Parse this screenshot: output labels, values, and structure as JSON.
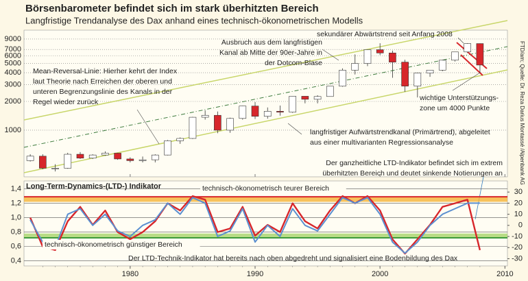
{
  "source": "FTD/am; Quelle: Dr. Reza Darius Montassé /Alpenbank AG",
  "chart_data": [
    {
      "type": "candlestick",
      "title": "Börsenbarometer befindet sich im stark überhitzten Bereich",
      "subtitle": "Langfristige Trendanalyse des Dax anhand eines technisch-ökonometrischen Modells",
      "x": [
        1972,
        1973,
        1974,
        1975,
        1976,
        1977,
        1978,
        1979,
        1980,
        1981,
        1982,
        1983,
        1984,
        1985,
        1986,
        1987,
        1988,
        1989,
        1990,
        1991,
        1992,
        1993,
        1994,
        1995,
        1996,
        1997,
        1998,
        1999,
        2000,
        2001,
        2002,
        2003,
        2004,
        2005,
        2006,
        2007,
        2008
      ],
      "open": [
        480,
        535,
        400,
        400,
        560,
        510,
        550,
        575,
        500,
        480,
        490,
        550,
        775,
        820,
        1366,
        1432,
        1000,
        1328,
        1790,
        1398,
        1578,
        1545,
        2267,
        2107,
        2254,
        2889,
        4250,
        5002,
        6958,
        6434,
        5160,
        2893,
        3965,
        4256,
        5408,
        6597,
        8067
      ],
      "high": [
        560,
        560,
        440,
        580,
        590,
        560,
        600,
        580,
        520,
        530,
        560,
        790,
        840,
        1380,
        1610,
        1570,
        1350,
        1800,
        1970,
        1730,
        1810,
        2270,
        2270,
        2320,
        2900,
        4440,
        6220,
        6990,
        8136,
        6800,
        5470,
        4000,
        4260,
        5460,
        6630,
        8152,
        8100
      ],
      "low": [
        470,
        390,
        370,
        395,
        500,
        500,
        540,
        490,
        460,
        460,
        460,
        545,
        720,
        810,
        1290,
        930,
        940,
        1290,
        1310,
        1320,
        1420,
        1520,
        1910,
        1910,
        2260,
        2850,
        3830,
        4680,
        6110,
        3540,
        2520,
        2203,
        3620,
        4150,
        5240,
        6440,
        4014
      ],
      "close": [
        535,
        400,
        400,
        560,
        510,
        550,
        575,
        500,
        480,
        490,
        550,
        775,
        820,
        1366,
        1432,
        1000,
        1328,
        1790,
        1398,
        1578,
        1545,
        2267,
        2107,
        2254,
        2889,
        4250,
        5002,
        6958,
        6434,
        5160,
        2893,
        3965,
        4256,
        5408,
        6597,
        8067,
        4810
      ],
      "up_color": "#ffffff",
      "down_color": "#d7262b",
      "xlim": [
        1971.5,
        2010.2
      ],
      "xticks": [
        1980,
        1990,
        2000,
        2010
      ],
      "ylim": [
        325,
        11150
      ],
      "log_scale": true,
      "grid": true,
      "yticks": [
        1000,
        2000,
        3000,
        4000,
        5000,
        6000,
        7000,
        9000
      ],
      "annotations": [
        {
          "lines": [
            "sekundärer Abwärtstrend seit Anfang 2008"
          ]
        },
        {
          "lines": [
            "Ausbruch aus dem langfristigen",
            "Kanal ab Mitte der 90er-Jahre in",
            "der Dotcom-Blase"
          ]
        },
        {
          "lines": [
            "Mean-Reversal-Linie: Hierher kehrt der Index",
            "laut Theorie nach Erreichen der oberen und",
            "unteren Begrenzungslinie des Kanals in der",
            "Regel wieder zurück"
          ]
        },
        {
          "lines": [
            "wichtige Unterstützungs-",
            "zone um 4000 Punkte"
          ]
        },
        {
          "lines": [
            "langfristiger Aufwärtstrendkanal (Primärtrend), abgeleitet",
            "aus einer multivarianten Regressionsanalyse"
          ]
        },
        {
          "lines": [
            "Der ganzheitliche LTD-Indikator befindet sich im extrem",
            "überhitzten Bereich und deutet sinkende Notierungen an"
          ],
          "color": "#3a7fc1"
        }
      ]
    },
    {
      "type": "line",
      "title": "Long-Term-Dynamics-(LTD-) Indikator",
      "x": [
        1972,
        1973,
        1974,
        1975,
        1976,
        1977,
        1978,
        1979,
        1980,
        1981,
        1982,
        1983,
        1984,
        1985,
        1986,
        1987,
        1988,
        1989,
        1990,
        1991,
        1992,
        1993,
        1994,
        1995,
        1996,
        1997,
        1998,
        1999,
        2000,
        2001,
        2002,
        2003,
        2004,
        2005,
        2006,
        2007,
        2008
      ],
      "xlim": [
        1971.5,
        2010.2
      ],
      "xticks": [
        1980,
        1990,
        2000,
        2010
      ],
      "series": [
        {
          "color": "#d7262b",
          "values": [
            1.0,
            0.6,
            0.55,
            0.95,
            1.15,
            0.9,
            1.1,
            0.8,
            0.7,
            0.8,
            0.95,
            1.2,
            1.1,
            1.3,
            1.25,
            0.8,
            0.85,
            1.15,
            0.75,
            0.9,
            0.8,
            1.2,
            0.95,
            0.85,
            1.1,
            1.3,
            1.2,
            1.3,
            1.1,
            0.7,
            0.5,
            0.7,
            0.9,
            1.15,
            1.2,
            1.25,
            0.55
          ]
        },
        {
          "color": "#5b8fd0",
          "axis": "y2",
          "values": [
            5,
            -15,
            -20,
            10,
            15,
            0,
            10,
            -5,
            -10,
            0,
            5,
            20,
            10,
            25,
            20,
            -10,
            -5,
            15,
            -15,
            0,
            -10,
            15,
            0,
            -5,
            10,
            25,
            20,
            25,
            10,
            -15,
            -25,
            -15,
            0,
            10,
            15,
            20,
            20
          ]
        }
      ],
      "ylim": [
        0.33,
        1.51
      ],
      "yticks": [
        {
          "value": 0.4,
          "label": "0,4"
        },
        {
          "value": 0.6,
          "label": "0,6"
        },
        {
          "value": 0.8,
          "label": "0,8"
        },
        {
          "value": 1.0,
          "label": "1,0"
        },
        {
          "value": 1.2,
          "label": "1,2"
        },
        {
          "value": 1.4,
          "label": "1,4"
        }
      ],
      "y2lim": [
        -36.5,
        40
      ],
      "y2ticks": [
        -30,
        -20,
        -10,
        0,
        10,
        20,
        30
      ],
      "grid": true,
      "zones": [
        {
          "label": "technisch-ökonometrisch teurer Bereich",
          "range": [
            1.22,
            1.29
          ],
          "color": "#f5b335",
          "edge": "#d7262b"
        },
        {
          "label": "technisch-ökonometrisch günstiger Bereich",
          "range": [
            0.72,
            0.78
          ],
          "color": "#a6d36a",
          "edge": "#3c9a3c"
        }
      ],
      "annotations": [
        {
          "lines": [
            "Der LTD-Technik-Indikator hat bereits nach oben abgedreht und signalisiert eine Bodenbildung des Dax"
          ]
        }
      ]
    }
  ]
}
